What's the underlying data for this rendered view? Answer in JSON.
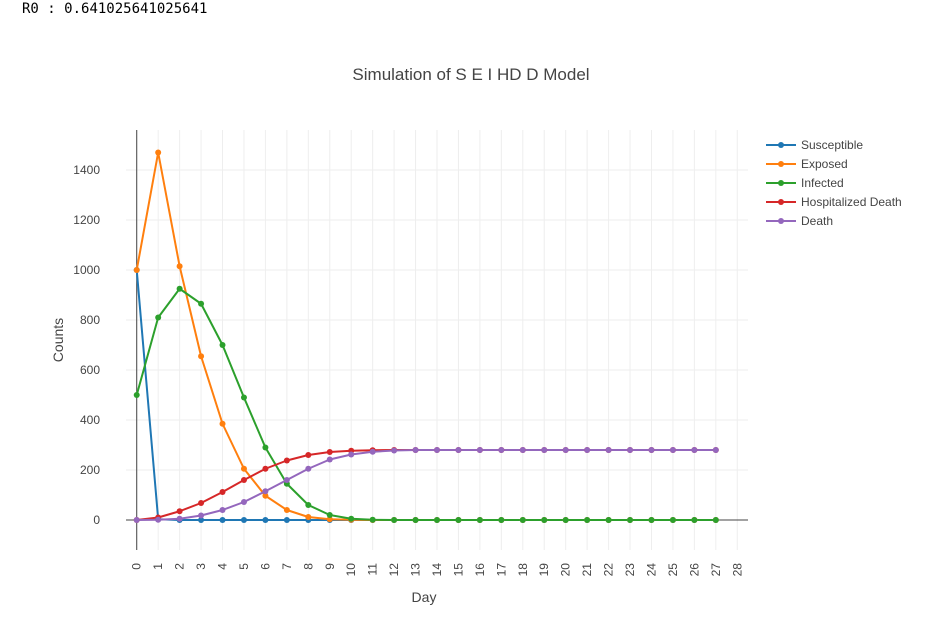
{
  "header": {
    "r0_label": "R0",
    "r0_sep": " : ",
    "r0_value": "0.641025641025641"
  },
  "chart_data": {
    "type": "line",
    "title": "Simulation of S E I HD D Model",
    "xlabel": "Day",
    "ylabel": "Counts",
    "xlim": [
      0,
      28
    ],
    "ylim": [
      -120,
      1560
    ],
    "x_ticks": [
      0,
      1,
      2,
      3,
      4,
      5,
      6,
      7,
      8,
      9,
      10,
      11,
      12,
      13,
      14,
      15,
      16,
      17,
      18,
      19,
      20,
      21,
      22,
      23,
      24,
      25,
      26,
      27,
      28
    ],
    "y_ticks": [
      0,
      200,
      400,
      600,
      800,
      1000,
      1200,
      1400
    ],
    "grid": true,
    "legend_position": "top-right",
    "x": [
      0,
      1,
      2,
      3,
      4,
      5,
      6,
      7,
      8,
      9,
      10,
      11,
      12,
      13,
      14,
      15,
      16,
      17,
      18,
      19,
      20,
      21,
      22,
      23,
      24,
      25,
      26,
      27
    ],
    "series": [
      {
        "name": "Susceptible",
        "color": "#1f77b4",
        "values": [
          1000,
          3,
          0,
          0,
          0,
          0,
          0,
          0,
          0,
          0,
          0,
          0,
          0,
          0,
          0,
          0,
          0,
          0,
          0,
          0,
          0,
          0,
          0,
          0,
          0,
          0,
          0,
          0
        ]
      },
      {
        "name": "Exposed",
        "color": "#ff7f0e",
        "values": [
          1000,
          1470,
          1015,
          655,
          385,
          205,
          97,
          40,
          12,
          3,
          1,
          0,
          0,
          0,
          0,
          0,
          0,
          0,
          0,
          0,
          0,
          0,
          0,
          0,
          0,
          0,
          0,
          0
        ]
      },
      {
        "name": "Infected",
        "color": "#2ca02c",
        "values": [
          500,
          810,
          925,
          865,
          700,
          490,
          290,
          145,
          60,
          20,
          5,
          1,
          0,
          0,
          0,
          0,
          0,
          0,
          0,
          0,
          0,
          0,
          0,
          0,
          0,
          0,
          0,
          0
        ]
      },
      {
        "name": "Hospitalized Death",
        "color": "#d62728",
        "values": [
          0,
          10,
          35,
          68,
          112,
          160,
          205,
          238,
          260,
          272,
          277,
          279,
          280,
          280,
          280,
          280,
          280,
          280,
          280,
          280,
          280,
          280,
          280,
          280,
          280,
          280,
          280,
          280
        ]
      },
      {
        "name": "Death",
        "color": "#9467bd",
        "values": [
          0,
          1,
          5,
          18,
          40,
          72,
          115,
          160,
          205,
          242,
          262,
          273,
          278,
          280,
          280,
          280,
          280,
          280,
          280,
          280,
          280,
          280,
          280,
          280,
          280,
          280,
          280,
          280
        ]
      }
    ]
  }
}
